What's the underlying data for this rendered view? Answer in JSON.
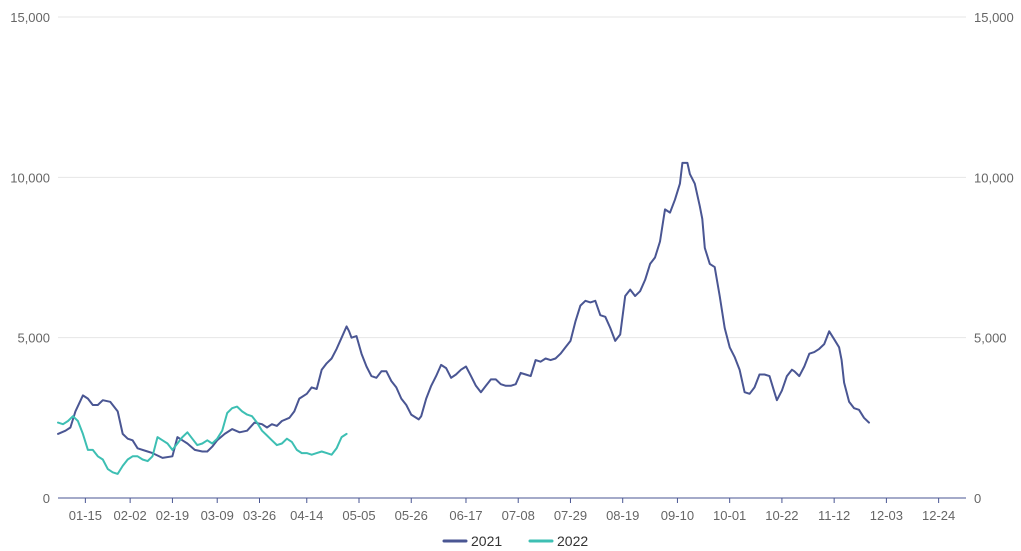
{
  "chart_data": {
    "type": "line",
    "title": "",
    "xlabel": "",
    "ylabel": "",
    "ylim": [
      0,
      15000
    ],
    "y_ticks": [
      0,
      5000,
      10000,
      15000
    ],
    "y_tick_labels": [
      "0",
      "5,000",
      "10,000",
      "15,000"
    ],
    "y_axes": "left-and-right",
    "grid": "horizontal",
    "legend_position": "bottom-center",
    "x_tick_labels": [
      "01-15",
      "02-02",
      "02-19",
      "03-09",
      "03-26",
      "04-14",
      "05-05",
      "05-26",
      "06-17",
      "07-08",
      "07-29",
      "08-19",
      "09-10",
      "10-01",
      "10-22",
      "11-12",
      "12-03",
      "12-24"
    ],
    "x_tick_day_index": [
      11,
      29,
      46,
      64,
      81,
      100,
      121,
      142,
      164,
      185,
      206,
      227,
      249,
      270,
      291,
      312,
      333,
      354
    ],
    "series": [
      {
        "name": "2021",
        "color": "#4a5693",
        "points": [
          [
            0,
            2000
          ],
          [
            3,
            2100
          ],
          [
            5,
            2200
          ],
          [
            7,
            2700
          ],
          [
            10,
            3200
          ],
          [
            12,
            3100
          ],
          [
            14,
            2900
          ],
          [
            16,
            2900
          ],
          [
            18,
            3050
          ],
          [
            21,
            3000
          ],
          [
            24,
            2700
          ],
          [
            26,
            2000
          ],
          [
            28,
            1850
          ],
          [
            30,
            1800
          ],
          [
            32,
            1550
          ],
          [
            36,
            1450
          ],
          [
            38,
            1400
          ],
          [
            42,
            1250
          ],
          [
            46,
            1300
          ],
          [
            48,
            1900
          ],
          [
            50,
            1800
          ],
          [
            52,
            1700
          ],
          [
            55,
            1500
          ],
          [
            58,
            1450
          ],
          [
            60,
            1450
          ],
          [
            62,
            1600
          ],
          [
            64,
            1800
          ],
          [
            67,
            2000
          ],
          [
            70,
            2150
          ],
          [
            73,
            2050
          ],
          [
            76,
            2100
          ],
          [
            79,
            2350
          ],
          [
            82,
            2300
          ],
          [
            84,
            2200
          ],
          [
            86,
            2300
          ],
          [
            88,
            2250
          ],
          [
            90,
            2400
          ],
          [
            93,
            2500
          ],
          [
            95,
            2700
          ],
          [
            97,
            3100
          ],
          [
            100,
            3250
          ],
          [
            102,
            3450
          ],
          [
            104,
            3400
          ],
          [
            106,
            4000
          ],
          [
            108,
            4200
          ],
          [
            110,
            4350
          ],
          [
            112,
            4650
          ],
          [
            114,
            5000
          ],
          [
            116,
            5350
          ],
          [
            117,
            5200
          ],
          [
            118,
            5000
          ],
          [
            120,
            5050
          ],
          [
            122,
            4500
          ],
          [
            124,
            4100
          ],
          [
            126,
            3800
          ],
          [
            128,
            3750
          ],
          [
            130,
            3950
          ],
          [
            132,
            3950
          ],
          [
            134,
            3650
          ],
          [
            136,
            3450
          ],
          [
            138,
            3100
          ],
          [
            140,
            2900
          ],
          [
            142,
            2600
          ],
          [
            145,
            2450
          ],
          [
            146,
            2550
          ],
          [
            148,
            3100
          ],
          [
            150,
            3500
          ],
          [
            152,
            3800
          ],
          [
            154,
            4150
          ],
          [
            156,
            4050
          ],
          [
            158,
            3750
          ],
          [
            160,
            3850
          ],
          [
            162,
            4000
          ],
          [
            164,
            4100
          ],
          [
            166,
            3800
          ],
          [
            168,
            3500
          ],
          [
            170,
            3300
          ],
          [
            172,
            3500
          ],
          [
            174,
            3700
          ],
          [
            176,
            3700
          ],
          [
            178,
            3550
          ],
          [
            180,
            3500
          ],
          [
            182,
            3500
          ],
          [
            184,
            3550
          ],
          [
            186,
            3900
          ],
          [
            188,
            3850
          ],
          [
            190,
            3800
          ],
          [
            192,
            4300
          ],
          [
            194,
            4250
          ],
          [
            196,
            4350
          ],
          [
            198,
            4300
          ],
          [
            200,
            4350
          ],
          [
            202,
            4500
          ],
          [
            204,
            4700
          ],
          [
            206,
            4900
          ],
          [
            208,
            5500
          ],
          [
            210,
            6000
          ],
          [
            212,
            6150
          ],
          [
            214,
            6100
          ],
          [
            216,
            6150
          ],
          [
            218,
            5700
          ],
          [
            220,
            5650
          ],
          [
            222,
            5300
          ],
          [
            224,
            4900
          ],
          [
            226,
            5100
          ],
          [
            227,
            5700
          ],
          [
            228,
            6300
          ],
          [
            230,
            6500
          ],
          [
            232,
            6300
          ],
          [
            234,
            6450
          ],
          [
            236,
            6800
          ],
          [
            238,
            7300
          ],
          [
            240,
            7500
          ],
          [
            242,
            8000
          ],
          [
            243,
            8500
          ],
          [
            244,
            9000
          ],
          [
            246,
            8900
          ],
          [
            248,
            9300
          ],
          [
            250,
            9800
          ],
          [
            251,
            10450
          ],
          [
            253,
            10450
          ],
          [
            254,
            10100
          ],
          [
            256,
            9800
          ],
          [
            258,
            9100
          ],
          [
            259,
            8700
          ],
          [
            260,
            7800
          ],
          [
            262,
            7300
          ],
          [
            264,
            7200
          ],
          [
            266,
            6300
          ],
          [
            268,
            5300
          ],
          [
            270,
            4700
          ],
          [
            272,
            4400
          ],
          [
            274,
            4000
          ],
          [
            276,
            3300
          ],
          [
            278,
            3250
          ],
          [
            280,
            3450
          ],
          [
            282,
            3850
          ],
          [
            284,
            3850
          ],
          [
            286,
            3800
          ],
          [
            288,
            3300
          ],
          [
            289,
            3050
          ],
          [
            291,
            3350
          ],
          [
            293,
            3800
          ],
          [
            295,
            4000
          ],
          [
            296,
            3950
          ],
          [
            298,
            3800
          ],
          [
            300,
            4100
          ],
          [
            302,
            4500
          ],
          [
            304,
            4550
          ],
          [
            306,
            4650
          ],
          [
            308,
            4800
          ],
          [
            309,
            5000
          ],
          [
            310,
            5200
          ],
          [
            312,
            4950
          ],
          [
            314,
            4700
          ],
          [
            315,
            4300
          ],
          [
            316,
            3600
          ],
          [
            318,
            3000
          ],
          [
            320,
            2800
          ],
          [
            322,
            2750
          ],
          [
            324,
            2500
          ],
          [
            326,
            2350
          ]
        ]
      },
      {
        "name": "2022",
        "color": "#3dbfb3",
        "points": [
          [
            0,
            2350
          ],
          [
            2,
            2300
          ],
          [
            4,
            2400
          ],
          [
            6,
            2550
          ],
          [
            8,
            2400
          ],
          [
            10,
            2000
          ],
          [
            12,
            1500
          ],
          [
            14,
            1500
          ],
          [
            16,
            1300
          ],
          [
            18,
            1200
          ],
          [
            20,
            900
          ],
          [
            22,
            800
          ],
          [
            24,
            750
          ],
          [
            26,
            1000
          ],
          [
            28,
            1200
          ],
          [
            30,
            1300
          ],
          [
            32,
            1300
          ],
          [
            34,
            1200
          ],
          [
            36,
            1150
          ],
          [
            38,
            1300
          ],
          [
            40,
            1900
          ],
          [
            42,
            1800
          ],
          [
            44,
            1700
          ],
          [
            46,
            1500
          ],
          [
            48,
            1700
          ],
          [
            50,
            1900
          ],
          [
            52,
            2050
          ],
          [
            54,
            1850
          ],
          [
            56,
            1650
          ],
          [
            58,
            1700
          ],
          [
            60,
            1800
          ],
          [
            62,
            1700
          ],
          [
            64,
            1850
          ],
          [
            66,
            2100
          ],
          [
            68,
            2650
          ],
          [
            70,
            2800
          ],
          [
            72,
            2850
          ],
          [
            74,
            2700
          ],
          [
            76,
            2600
          ],
          [
            78,
            2550
          ],
          [
            80,
            2350
          ],
          [
            82,
            2100
          ],
          [
            84,
            1950
          ],
          [
            86,
            1800
          ],
          [
            88,
            1650
          ],
          [
            90,
            1700
          ],
          [
            92,
            1850
          ],
          [
            94,
            1750
          ],
          [
            96,
            1500
          ],
          [
            98,
            1400
          ],
          [
            100,
            1400
          ],
          [
            102,
            1350
          ],
          [
            104,
            1400
          ],
          [
            106,
            1450
          ],
          [
            108,
            1400
          ],
          [
            110,
            1350
          ],
          [
            112,
            1550
          ],
          [
            114,
            1900
          ],
          [
            116,
            2000
          ]
        ]
      }
    ]
  }
}
